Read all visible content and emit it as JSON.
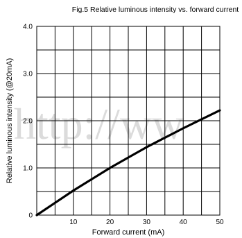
{
  "chart_data": {
    "type": "line",
    "title": "Fig.5 Relative luminous intensity vs. forward current",
    "xlabel": "Forward current (mA)",
    "ylabel": "Relative luminous intensity (@20mA)",
    "xlim": [
      0,
      50
    ],
    "ylim": [
      0,
      4.0
    ],
    "x_ticks": [
      10,
      20,
      30,
      40,
      50
    ],
    "x_tick_labels": [
      "10",
      "20",
      "30",
      "40",
      "50"
    ],
    "y_ticks": [
      0,
      1.0,
      2.0,
      3.0,
      4.0
    ],
    "y_tick_labels": [
      "0",
      "1.0",
      "2.0",
      "3.0",
      "4.0"
    ],
    "x_gridlines": [
      5,
      10,
      15,
      20,
      25,
      30,
      35,
      40,
      45,
      50
    ],
    "y_gridlines": [
      0.5,
      1.0,
      1.5,
      2.0,
      2.5,
      3.0,
      3.5,
      4.0
    ],
    "grid": true,
    "series": [
      {
        "x": [
          0,
          5,
          10,
          15,
          20,
          25,
          30,
          35,
          40,
          45,
          50
        ],
        "values": [
          0,
          0.26,
          0.52,
          0.76,
          1.0,
          1.22,
          1.44,
          1.64,
          1.84,
          2.03,
          2.22
        ]
      }
    ],
    "watermark": "http://ww"
  }
}
